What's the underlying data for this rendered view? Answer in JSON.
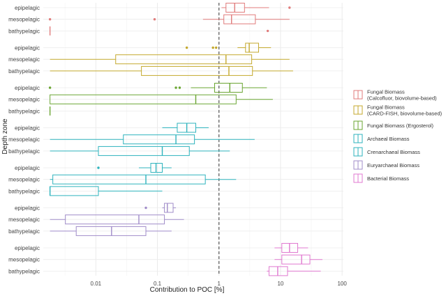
{
  "chart_data": {
    "type": "boxplot",
    "xlabel": "Contribution to POC [%]",
    "ylabel": "Depth zone",
    "x_scale": "log10",
    "xlim": [
      0.0014,
      105
    ],
    "x_ticks": [
      0.01,
      0.1,
      1,
      10,
      100
    ],
    "x_tick_labels": [
      "0.01",
      "0.1",
      "1",
      "10",
      "100"
    ],
    "reference_line": 1,
    "grid": true,
    "legend_position": "right",
    "depth_labels": [
      "epipelagic",
      "mesopelagic",
      "bathypelagic"
    ],
    "series": [
      {
        "name": "Fungal Biomass\n(Calcofluor, biovolume-based)",
        "color": "#e07b7b",
        "boxes": [
          {
            "zone": "epipelagic",
            "whisker_low": 1.1,
            "q1": 1.3,
            "median": 1.8,
            "q3": 2.6,
            "whisker_high": 6.5,
            "outliers": [
              14
            ]
          },
          {
            "zone": "mesopelagic",
            "whisker_low": 0.55,
            "q1": 1.2,
            "median": 1.6,
            "q3": 3.9,
            "whisker_high": 14,
            "outliers": [
              0.0018,
              0.09
            ]
          },
          {
            "zone": "bathypelagic",
            "whisker_low": 0.0018,
            "q1": 0.0018,
            "median": 0.0018,
            "q3": 0.0018,
            "whisker_high": 0.0018,
            "outliers": [
              6.2
            ]
          }
        ]
      },
      {
        "name": "Fungal Biomass\n(CARD-FISH, biovolume-based)",
        "color": "#c4a92e",
        "boxes": [
          {
            "zone": "epipelagic",
            "whisker_low": 2.0,
            "q1": 2.7,
            "median": 3.1,
            "q3": 4.4,
            "whisker_high": 7.0,
            "outliers": [
              0.3,
              0.8,
              0.9
            ]
          },
          {
            "zone": "mesopelagic",
            "whisker_low": 0.0018,
            "q1": 0.021,
            "median": 1.3,
            "q3": 3.4,
            "whisker_high": 14,
            "outliers": []
          },
          {
            "zone": "bathypelagic",
            "whisker_low": 0.0018,
            "q1": 0.055,
            "median": 1.45,
            "q3": 3.5,
            "whisker_high": 16,
            "outliers": []
          }
        ]
      },
      {
        "name": "Fungal Biomass (Ergosterol)",
        "color": "#6aa532",
        "boxes": [
          {
            "zone": "epipelagic",
            "whisker_low": 0.35,
            "q1": 0.85,
            "median": 1.5,
            "q3": 2.4,
            "whisker_high": 6.0,
            "outliers": [
              0.0018,
              0.2,
              0.23
            ]
          },
          {
            "zone": "mesopelagic",
            "whisker_low": 0.0018,
            "q1": 0.0018,
            "median": 0.42,
            "q3": 1.9,
            "whisker_high": 7.5,
            "outliers": []
          },
          {
            "zone": "bathypelagic",
            "whisker_low": 0.0018,
            "q1": 0.0018,
            "median": 0.0018,
            "q3": 0.0018,
            "whisker_high": 0.0018,
            "outliers": []
          }
        ]
      },
      {
        "name": "Archaeal Biomass",
        "color": "#2eb3bd",
        "boxes": [
          {
            "zone": "epipelagic",
            "whisker_low": 0.12,
            "q1": 0.21,
            "median": 0.3,
            "q3": 0.42,
            "whisker_high": 0.68,
            "outliers": []
          },
          {
            "zone": "mesopelagic",
            "whisker_low": 0.0018,
            "q1": 0.028,
            "median": 0.2,
            "q3": 0.4,
            "whisker_high": 3.8,
            "outliers": []
          },
          {
            "zone": "bathypelagic",
            "whisker_low": 0.0018,
            "q1": 0.011,
            "median": 0.12,
            "q3": 0.33,
            "whisker_high": 1.5,
            "outliers": []
          }
        ]
      },
      {
        "name": "Crenarchaeal Biomass",
        "color": "#2eb3bd",
        "boxes": [
          {
            "zone": "epipelagic",
            "whisker_low": 0.05,
            "q1": 0.078,
            "median": 0.095,
            "q3": 0.12,
            "whisker_high": 0.17,
            "outliers": [
              0.011
            ]
          },
          {
            "zone": "mesopelagic",
            "whisker_low": 0.0018,
            "q1": 0.002,
            "median": 0.065,
            "q3": 0.6,
            "whisker_high": 1.9,
            "outliers": []
          },
          {
            "zone": "bathypelagic",
            "whisker_low": 0.0018,
            "q1": 0.0018,
            "median": 0.0018,
            "q3": 0.011,
            "whisker_high": 0.12,
            "outliers": []
          }
        ]
      },
      {
        "name": "Euryarchaeal Biomass",
        "color": "#a08cc9",
        "boxes": [
          {
            "zone": "epipelagic",
            "whisker_low": 0.12,
            "q1": 0.13,
            "median": 0.145,
            "q3": 0.18,
            "whisker_high": 0.2,
            "outliers": [
              0.065
            ]
          },
          {
            "zone": "mesopelagic",
            "whisker_low": 0.0018,
            "q1": 0.0032,
            "median": 0.05,
            "q3": 0.13,
            "whisker_high": 0.27,
            "outliers": []
          },
          {
            "zone": "bathypelagic",
            "whisker_low": 0.0018,
            "q1": 0.0048,
            "median": 0.018,
            "q3": 0.065,
            "whisker_high": 0.17,
            "outliers": []
          }
        ]
      },
      {
        "name": "Bacterial Biomass",
        "color": "#e079d0",
        "boxes": [
          {
            "zone": "epipelagic",
            "whisker_low": 8.0,
            "q1": 10.5,
            "median": 14,
            "q3": 19,
            "whisker_high": 28,
            "outliers": []
          },
          {
            "zone": "mesopelagic",
            "whisker_low": 8.0,
            "q1": 10.5,
            "median": 22,
            "q3": 30,
            "whisker_high": 48,
            "outliers": []
          },
          {
            "zone": "bathypelagic",
            "whisker_low": 6.0,
            "q1": 6.5,
            "median": 9.0,
            "q3": 13,
            "whisker_high": 45,
            "outliers": []
          }
        ]
      }
    ]
  }
}
